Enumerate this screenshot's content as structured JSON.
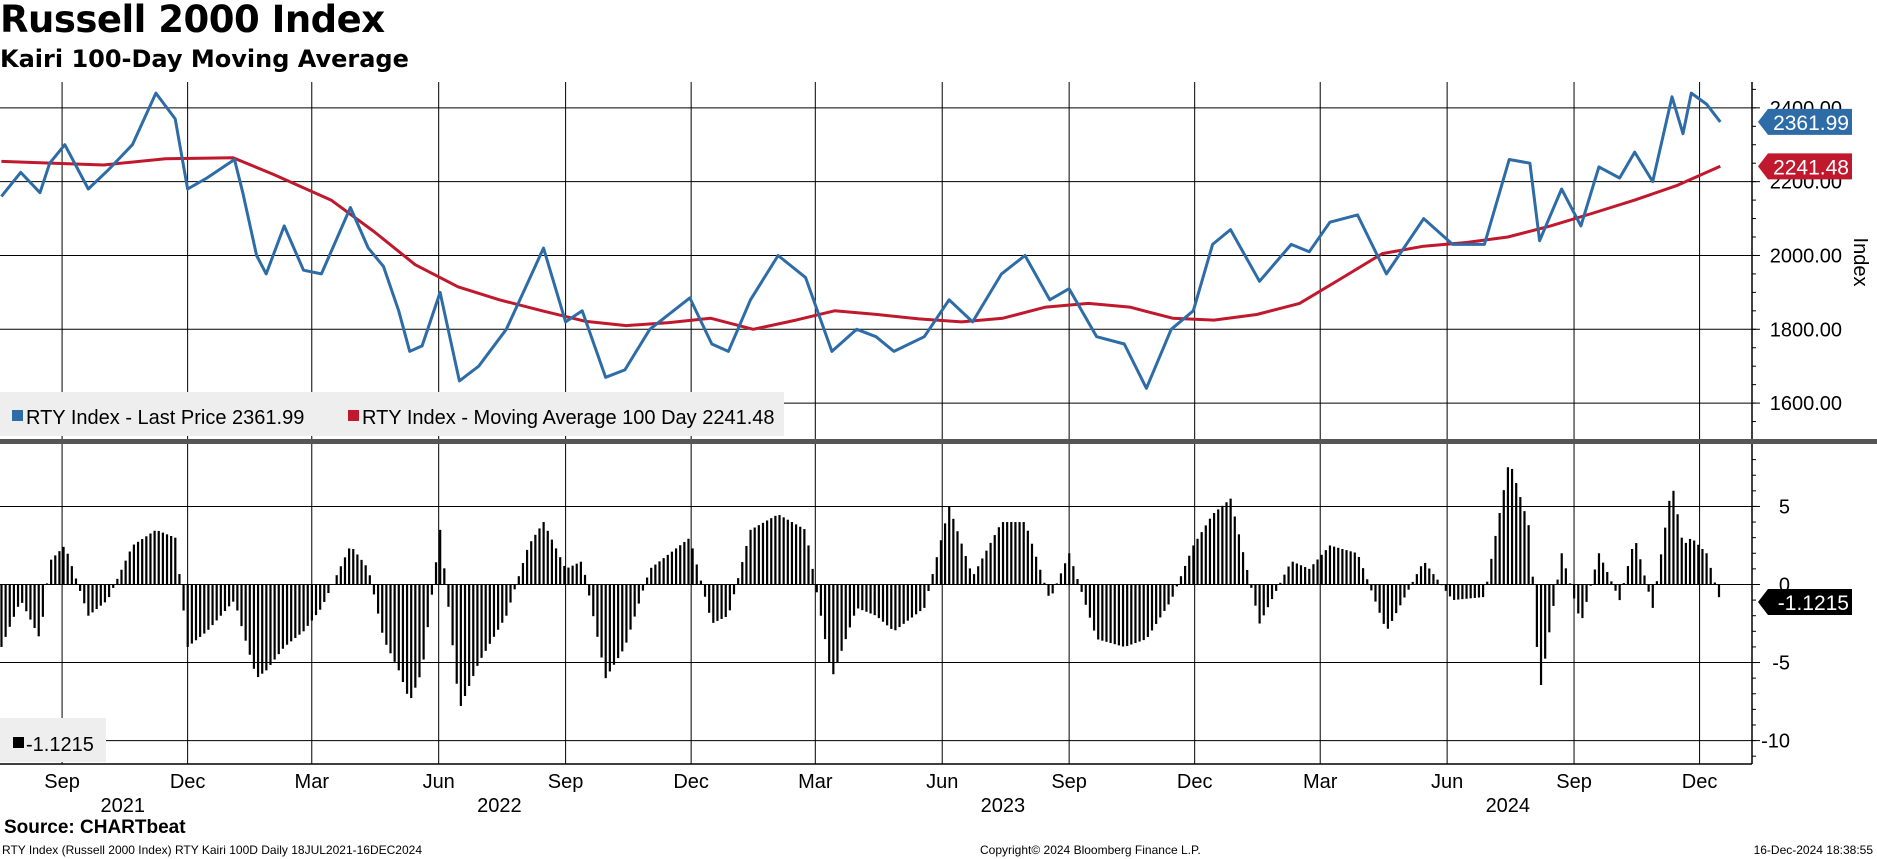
{
  "header": {
    "title": "Russell 2000 Index",
    "subtitle": "Kairi 100-Day Moving Average"
  },
  "footer": {
    "source": "Source: CHARTbeat",
    "left": "RTY Index (Russell 2000 Index) RTY Kairi 100D  Daily 18JUL2021-16DEC2024",
    "center": "Copyright© 2024 Bloomberg Finance L.P.",
    "right": "16-Dec-2024 18:38:55"
  },
  "colors": {
    "price": "#2e6ca8",
    "moving_average": "#c0182c",
    "kairi": "#000000",
    "grid": "#000000"
  },
  "chart_data": [
    {
      "type": "line",
      "ylabel": "Index",
      "ylim": [
        1500,
        2470
      ],
      "yticks": [
        "2400.00",
        "2200.00",
        "2000.00",
        "1800.00",
        "1600.00"
      ],
      "grid": true,
      "legend_position": "bottom-left",
      "legend": [
        {
          "label": "RTY Index - Last Price 2361.99",
          "color": "#2e6ca8"
        },
        {
          "label": "RTY Index - Moving Average 100 Day 2241.48",
          "color": "#c0182c"
        }
      ],
      "last_value_tags": [
        {
          "text": "2361.99",
          "value": 2361.99,
          "color": "#2e6ca8"
        },
        {
          "text": "2241.48",
          "value": 2241.48,
          "color": "#c0182c"
        }
      ],
      "series": [
        {
          "name": "RTY Index - Last Price",
          "color": "#2e6ca8",
          "points": [
            [
              "2021-07-19",
              2160
            ],
            [
              "2021-08-02",
              2225
            ],
            [
              "2021-08-16",
              2170
            ],
            [
              "2021-08-23",
              2250
            ],
            [
              "2021-09-03",
              2300
            ],
            [
              "2021-09-20",
              2180
            ],
            [
              "2021-10-04",
              2230
            ],
            [
              "2021-10-22",
              2300
            ],
            [
              "2021-11-08",
              2440
            ],
            [
              "2021-11-22",
              2370
            ],
            [
              "2021-12-01",
              2180
            ],
            [
              "2021-12-15",
              2210
            ],
            [
              "2022-01-04",
              2260
            ],
            [
              "2022-01-10",
              2170
            ],
            [
              "2022-01-20",
              2000
            ],
            [
              "2022-01-27",
              1950
            ],
            [
              "2022-02-09",
              2080
            ],
            [
              "2022-02-23",
              1960
            ],
            [
              "2022-03-08",
              1950
            ],
            [
              "2022-03-29",
              2130
            ],
            [
              "2022-04-11",
              2020
            ],
            [
              "2022-04-22",
              1970
            ],
            [
              "2022-05-03",
              1850
            ],
            [
              "2022-05-11",
              1740
            ],
            [
              "2022-05-20",
              1755
            ],
            [
              "2022-06-02",
              1900
            ],
            [
              "2022-06-16",
              1660
            ],
            [
              "2022-06-30",
              1700
            ],
            [
              "2022-07-20",
              1800
            ],
            [
              "2022-08-05",
              1930
            ],
            [
              "2022-08-16",
              2020
            ],
            [
              "2022-09-01",
              1820
            ],
            [
              "2022-09-13",
              1850
            ],
            [
              "2022-09-30",
              1670
            ],
            [
              "2022-10-14",
              1690
            ],
            [
              "2022-11-01",
              1800
            ],
            [
              "2022-11-30",
              1885
            ],
            [
              "2022-12-16",
              1760
            ],
            [
              "2022-12-28",
              1740
            ],
            [
              "2023-01-13",
              1880
            ],
            [
              "2023-02-02",
              2000
            ],
            [
              "2023-02-22",
              1940
            ],
            [
              "2023-03-13",
              1740
            ],
            [
              "2023-03-31",
              1800
            ],
            [
              "2023-04-14",
              1780
            ],
            [
              "2023-04-27",
              1740
            ],
            [
              "2023-05-19",
              1780
            ],
            [
              "2023-06-06",
              1880
            ],
            [
              "2023-06-23",
              1820
            ],
            [
              "2023-07-14",
              1950
            ],
            [
              "2023-07-31",
              2000
            ],
            [
              "2023-08-18",
              1880
            ],
            [
              "2023-09-01",
              1910
            ],
            [
              "2023-09-21",
              1780
            ],
            [
              "2023-10-11",
              1760
            ],
            [
              "2023-10-27",
              1640
            ],
            [
              "2023-11-14",
              1800
            ],
            [
              "2023-11-30",
              1850
            ],
            [
              "2023-12-14",
              2030
            ],
            [
              "2023-12-27",
              2070
            ],
            [
              "2024-01-17",
              1930
            ],
            [
              "2024-02-09",
              2030
            ],
            [
              "2024-02-22",
              2010
            ],
            [
              "2024-03-08",
              2090
            ],
            [
              "2024-03-28",
              2110
            ],
            [
              "2024-04-18",
              1950
            ],
            [
              "2024-05-15",
              2100
            ],
            [
              "2024-06-05",
              2030
            ],
            [
              "2024-06-28",
              2030
            ],
            [
              "2024-07-16",
              2260
            ],
            [
              "2024-07-31",
              2250
            ],
            [
              "2024-08-07",
              2040
            ],
            [
              "2024-08-23",
              2180
            ],
            [
              "2024-09-06",
              2080
            ],
            [
              "2024-09-19",
              2240
            ],
            [
              "2024-10-04",
              2210
            ],
            [
              "2024-10-15",
              2280
            ],
            [
              "2024-10-28",
              2200
            ],
            [
              "2024-11-11",
              2430
            ],
            [
              "2024-11-19",
              2330
            ],
            [
              "2024-11-25",
              2440
            ],
            [
              "2024-12-06",
              2410
            ],
            [
              "2024-12-16",
              2361.99
            ]
          ]
        },
        {
          "name": "RTY Index - Moving Average 100 Day",
          "color": "#c0182c",
          "points": [
            [
              "2021-07-19",
              2255
            ],
            [
              "2021-10-01",
              2245
            ],
            [
              "2021-11-15",
              2262
            ],
            [
              "2022-01-03",
              2265
            ],
            [
              "2022-02-01",
              2220
            ],
            [
              "2022-03-15",
              2150
            ],
            [
              "2022-04-15",
              2065
            ],
            [
              "2022-05-15",
              1975
            ],
            [
              "2022-06-15",
              1915
            ],
            [
              "2022-07-15",
              1880
            ],
            [
              "2022-08-15",
              1850
            ],
            [
              "2022-09-15",
              1822
            ],
            [
              "2022-10-15",
              1810
            ],
            [
              "2022-11-15",
              1818
            ],
            [
              "2022-12-15",
              1830
            ],
            [
              "2023-01-15",
              1800
            ],
            [
              "2023-02-15",
              1825
            ],
            [
              "2023-03-15",
              1850
            ],
            [
              "2023-04-15",
              1840
            ],
            [
              "2023-05-15",
              1828
            ],
            [
              "2023-06-15",
              1820
            ],
            [
              "2023-07-15",
              1830
            ],
            [
              "2023-08-15",
              1860
            ],
            [
              "2023-09-15",
              1870
            ],
            [
              "2023-10-15",
              1860
            ],
            [
              "2023-11-15",
              1830
            ],
            [
              "2023-12-15",
              1825
            ],
            [
              "2024-01-15",
              1840
            ],
            [
              "2024-02-15",
              1870
            ],
            [
              "2024-03-15",
              1935
            ],
            [
              "2024-04-15",
              2005
            ],
            [
              "2024-05-15",
              2025
            ],
            [
              "2024-06-15",
              2035
            ],
            [
              "2024-07-15",
              2050
            ],
            [
              "2024-08-15",
              2080
            ],
            [
              "2024-09-15",
              2115
            ],
            [
              "2024-10-15",
              2150
            ],
            [
              "2024-11-15",
              2190
            ],
            [
              "2024-12-16",
              2241.48
            ]
          ]
        }
      ],
      "x_ticks": [
        {
          "label": "Sep",
          "date": "2021-09-01"
        },
        {
          "label": "Dec",
          "date": "2021-12-01"
        },
        {
          "label": "Mar",
          "date": "2022-03-01"
        },
        {
          "label": "Jun",
          "date": "2022-06-01"
        },
        {
          "label": "Sep",
          "date": "2022-09-01"
        },
        {
          "label": "Dec",
          "date": "2022-12-01"
        },
        {
          "label": "Mar",
          "date": "2023-03-01"
        },
        {
          "label": "Jun",
          "date": "2023-06-01"
        },
        {
          "label": "Sep",
          "date": "2023-09-01"
        },
        {
          "label": "Dec",
          "date": "2023-12-01"
        },
        {
          "label": "Mar",
          "date": "2024-03-01"
        },
        {
          "label": "Jun",
          "date": "2024-06-01"
        },
        {
          "label": "Sep",
          "date": "2024-09-01"
        },
        {
          "label": "Dec",
          "date": "2024-12-01"
        }
      ],
      "years": [
        {
          "label": "2021",
          "date": "2021-10-15"
        },
        {
          "label": "2022",
          "date": "2022-07-15"
        },
        {
          "label": "2023",
          "date": "2023-07-15"
        },
        {
          "label": "2024",
          "date": "2024-07-15"
        }
      ],
      "xlim": [
        "2021-07-18",
        "2025-01-08"
      ]
    },
    {
      "type": "bar",
      "ylim": [
        -11.5,
        9.0
      ],
      "yticks": [
        "5",
        "0",
        "-5",
        "-10"
      ],
      "legend": [
        {
          "label": "-1.1215",
          "color": "#000000"
        }
      ],
      "last_value_tag": {
        "text": "-1.1215",
        "value": -1.1215,
        "color": "#000000"
      },
      "series": [
        {
          "name": "RTY Kairi 100D",
          "color": "#000000",
          "points": [
            [
              "2021-07-19",
              -4.0
            ],
            [
              "2021-08-02",
              -1.0
            ],
            [
              "2021-08-16",
              -3.5
            ],
            [
              "2021-08-23",
              1.5
            ],
            [
              "2021-09-03",
              2.5
            ],
            [
              "2021-09-20",
              -2.0
            ],
            [
              "2021-10-04",
              -1.0
            ],
            [
              "2021-10-22",
              2.5
            ],
            [
              "2021-11-08",
              3.5
            ],
            [
              "2021-11-22",
              3.0
            ],
            [
              "2021-12-01",
              -4.0
            ],
            [
              "2021-12-15",
              -3.0
            ],
            [
              "2022-01-04",
              -1.0
            ],
            [
              "2022-01-10",
              -3.0
            ],
            [
              "2022-01-20",
              -6.0
            ],
            [
              "2022-01-27",
              -5.5
            ],
            [
              "2022-02-09",
              -4.0
            ],
            [
              "2022-02-23",
              -3.0
            ],
            [
              "2022-03-08",
              -1.5
            ],
            [
              "2022-03-29",
              2.5
            ],
            [
              "2022-04-11",
              1.0
            ],
            [
              "2022-04-22",
              -3.5
            ],
            [
              "2022-05-03",
              -5.5
            ],
            [
              "2022-05-11",
              -7.5
            ],
            [
              "2022-05-20",
              -5.5
            ],
            [
              "2022-06-02",
              3.5
            ],
            [
              "2022-06-16",
              -8.0
            ],
            [
              "2022-06-30",
              -5.0
            ],
            [
              "2022-07-20",
              -2.0
            ],
            [
              "2022-08-05",
              2.5
            ],
            [
              "2022-08-16",
              4.0
            ],
            [
              "2022-09-01",
              1.0
            ],
            [
              "2022-09-13",
              1.5
            ],
            [
              "2022-09-30",
              -6.0
            ],
            [
              "2022-10-14",
              -4.0
            ],
            [
              "2022-11-01",
              1.0
            ],
            [
              "2022-11-30",
              3.0
            ],
            [
              "2022-12-16",
              -2.5
            ],
            [
              "2022-12-28",
              -2.0
            ],
            [
              "2023-01-13",
              3.5
            ],
            [
              "2023-02-02",
              4.5
            ],
            [
              "2023-02-22",
              3.5
            ],
            [
              "2023-03-13",
              -6.0
            ],
            [
              "2023-03-31",
              -1.5
            ],
            [
              "2023-04-14",
              -2.0
            ],
            [
              "2023-04-27",
              -3.0
            ],
            [
              "2023-05-19",
              -1.5
            ],
            [
              "2023-06-06",
              5.0
            ],
            [
              "2023-06-23",
              0.5
            ],
            [
              "2023-07-14",
              4.0
            ],
            [
              "2023-07-31",
              4.0
            ],
            [
              "2023-08-18",
              -1.0
            ],
            [
              "2023-09-01",
              2.0
            ],
            [
              "2023-09-21",
              -3.5
            ],
            [
              "2023-10-11",
              -4.0
            ],
            [
              "2023-10-27",
              -3.5
            ],
            [
              "2023-11-14",
              -1.0
            ],
            [
              "2023-11-30",
              2.5
            ],
            [
              "2023-12-14",
              4.5
            ],
            [
              "2023-12-27",
              5.5
            ],
            [
              "2024-01-17",
              -2.5
            ],
            [
              "2024-02-09",
              1.5
            ],
            [
              "2024-02-22",
              1.0
            ],
            [
              "2024-03-08",
              2.5
            ],
            [
              "2024-03-28",
              2.0
            ],
            [
              "2024-04-18",
              -3.0
            ],
            [
              "2024-05-15",
              1.5
            ],
            [
              "2024-06-05",
              -1.0
            ],
            [
              "2024-06-28",
              -0.8
            ],
            [
              "2024-07-16",
              8.0
            ],
            [
              "2024-07-31",
              3.5
            ],
            [
              "2024-08-07",
              -7.0
            ],
            [
              "2024-08-23",
              2.0
            ],
            [
              "2024-09-06",
              -2.5
            ],
            [
              "2024-09-19",
              2.0
            ],
            [
              "2024-10-04",
              -1.0
            ],
            [
              "2024-10-15",
              3.0
            ],
            [
              "2024-10-28",
              -1.5
            ],
            [
              "2024-11-11",
              6.5
            ],
            [
              "2024-11-19",
              2.5
            ],
            [
              "2024-11-25",
              3.0
            ],
            [
              "2024-12-06",
              2.0
            ],
            [
              "2024-12-16",
              -1.1215
            ]
          ]
        }
      ]
    }
  ]
}
